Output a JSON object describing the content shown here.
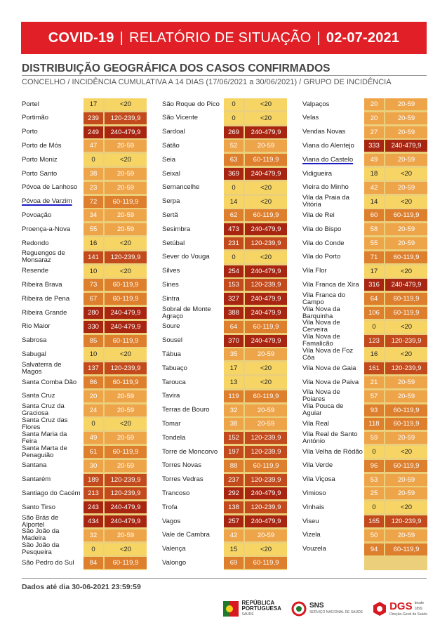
{
  "banner": {
    "left": "COVID-19",
    "middle": "RELATÓRIO DE SITUAÇÃO",
    "right": "02-07-2021",
    "separator": "|"
  },
  "heading": "DISTRIBUIÇÃO GEOGRÁFICA DOS CASOS CONFIRMADOS",
  "subheading": "CONCELHO / INCIDÊNCIA CUMULATIVA A 14 DIAS (17/06/2021 a 30/06/2021) / GRUPO DE INCIDÊNCIA",
  "footnote": "Dados até dia 30-06-2021 23:59:59",
  "group_colors": {
    "<20": {
      "bg": "#f6d565",
      "fg": "#222222"
    },
    "20-59": {
      "bg": "#eea54a",
      "fg": "#ffffff"
    },
    "60-119,9": {
      "bg": "#dd7f2c",
      "fg": "#ffffff"
    },
    "120-239,9": {
      "bg": "#c24a1c",
      "fg": "#ffffff"
    },
    "240-479,9": {
      "bg": "#a82611",
      "fg": "#ffffff"
    }
  },
  "columns": [
    [
      {
        "name": "Portel",
        "value": "17",
        "group": "<20"
      },
      {
        "name": "Portimão",
        "value": "239",
        "group": "120-239,9"
      },
      {
        "name": "Porto",
        "value": "249",
        "group": "240-479,9"
      },
      {
        "name": "Porto de Mós",
        "value": "47",
        "group": "20-59"
      },
      {
        "name": "Porto Moniz",
        "value": "0",
        "group": "<20"
      },
      {
        "name": "Porto Santo",
        "value": "38",
        "group": "20-59"
      },
      {
        "name": "Póvoa de Lanhoso",
        "value": "23",
        "group": "20-59"
      },
      {
        "name": "Póvoa de Varzim",
        "value": "72",
        "group": "60-119,9",
        "highlight": true
      },
      {
        "name": "Povoação",
        "value": "34",
        "group": "20-59"
      },
      {
        "name": "Proença-a-Nova",
        "value": "55",
        "group": "20-59"
      },
      {
        "name": "Redondo",
        "value": "16",
        "group": "<20"
      },
      {
        "name": "Reguengos de Monsaraz",
        "value": "141",
        "group": "120-239,9"
      },
      {
        "name": "Resende",
        "value": "10",
        "group": "<20"
      },
      {
        "name": "Ribeira Brava",
        "value": "73",
        "group": "60-119,9"
      },
      {
        "name": "Ribeira de Pena",
        "value": "67",
        "group": "60-119,9"
      },
      {
        "name": "Ribeira Grande",
        "value": "280",
        "group": "240-479,9"
      },
      {
        "name": "Rio Maior",
        "value": "330",
        "group": "240-479,9"
      },
      {
        "name": "Sabrosa",
        "value": "85",
        "group": "60-119,9"
      },
      {
        "name": "Sabugal",
        "value": "10",
        "group": "<20"
      },
      {
        "name": "Salvaterra de Magos",
        "value": "137",
        "group": "120-239,9"
      },
      {
        "name": "Santa Comba Dão",
        "value": "86",
        "group": "60-119,9"
      },
      {
        "name": "Santa Cruz",
        "value": "20",
        "group": "20-59"
      },
      {
        "name": "Santa Cruz da Graciosa",
        "value": "24",
        "group": "20-59"
      },
      {
        "name": "Santa Cruz das Flores",
        "value": "0",
        "group": "<20"
      },
      {
        "name": "Santa Maria da Feira",
        "value": "49",
        "group": "20-59"
      },
      {
        "name": "Santa Marta de Penaguião",
        "value": "61",
        "group": "60-119,9"
      },
      {
        "name": "Santana",
        "value": "30",
        "group": "20-59"
      },
      {
        "name": "Santarém",
        "value": "189",
        "group": "120-239,9"
      },
      {
        "name": "Santiago do Cacém",
        "value": "213",
        "group": "120-239,9"
      },
      {
        "name": "Santo Tirso",
        "value": "243",
        "group": "240-479,9"
      },
      {
        "name": "São Brás de Alportel",
        "value": "434",
        "group": "240-479,9"
      },
      {
        "name": "São João da Madeira",
        "value": "32",
        "group": "20-59"
      },
      {
        "name": "São João da Pesqueira",
        "value": "0",
        "group": "<20"
      },
      {
        "name": "São Pedro do Sul",
        "value": "84",
        "group": "60-119,9"
      }
    ],
    [
      {
        "name": "São Roque do Pico",
        "value": "0",
        "group": "<20"
      },
      {
        "name": "São Vicente",
        "value": "0",
        "group": "<20"
      },
      {
        "name": "Sardoal",
        "value": "269",
        "group": "240-479,9"
      },
      {
        "name": "Sátão",
        "value": "52",
        "group": "20-59"
      },
      {
        "name": "Seia",
        "value": "63",
        "group": "60-119,9"
      },
      {
        "name": "Seixal",
        "value": "369",
        "group": "240-479,9"
      },
      {
        "name": "Sernancelhe",
        "value": "0",
        "group": "<20"
      },
      {
        "name": "Serpa",
        "value": "14",
        "group": "<20"
      },
      {
        "name": "Sertã",
        "value": "62",
        "group": "60-119,9"
      },
      {
        "name": "Sesimbra",
        "value": "473",
        "group": "240-479,9"
      },
      {
        "name": "Setúbal",
        "value": "231",
        "group": "120-239,9"
      },
      {
        "name": "Sever do Vouga",
        "value": "0",
        "group": "<20"
      },
      {
        "name": "Silves",
        "value": "254",
        "group": "240-479,9"
      },
      {
        "name": "Sines",
        "value": "153",
        "group": "120-239,9"
      },
      {
        "name": "Sintra",
        "value": "327",
        "group": "240-479,9"
      },
      {
        "name": "Sobral de Monte Agraço",
        "value": "388",
        "group": "240-479,9"
      },
      {
        "name": "Soure",
        "value": "64",
        "group": "60-119,9"
      },
      {
        "name": "Sousel",
        "value": "370",
        "group": "240-479,9"
      },
      {
        "name": "Tábua",
        "value": "35",
        "group": "20-59"
      },
      {
        "name": "Tabuaço",
        "value": "17",
        "group": "<20"
      },
      {
        "name": "Tarouca",
        "value": "13",
        "group": "<20"
      },
      {
        "name": "Tavira",
        "value": "119",
        "group": "60-119,9"
      },
      {
        "name": "Terras de Bouro",
        "value": "32",
        "group": "20-59"
      },
      {
        "name": "Tomar",
        "value": "38",
        "group": "20-59"
      },
      {
        "name": "Tondela",
        "value": "152",
        "group": "120-239,9"
      },
      {
        "name": "Torre de Moncorvo",
        "value": "197",
        "group": "120-239,9"
      },
      {
        "name": "Torres Novas",
        "value": "88",
        "group": "60-119,9"
      },
      {
        "name": "Torres Vedras",
        "value": "237",
        "group": "120-239,9"
      },
      {
        "name": "Trancoso",
        "value": "292",
        "group": "240-479,9"
      },
      {
        "name": "Trofa",
        "value": "138",
        "group": "120-239,9"
      },
      {
        "name": "Vagos",
        "value": "257",
        "group": "240-479,9"
      },
      {
        "name": "Vale de Cambra",
        "value": "42",
        "group": "20-59"
      },
      {
        "name": "Valença",
        "value": "15",
        "group": "<20"
      },
      {
        "name": "Valongo",
        "value": "69",
        "group": "60-119,9"
      }
    ],
    [
      {
        "name": "Valpaços",
        "value": "20",
        "group": "20-59"
      },
      {
        "name": "Velas",
        "value": "20",
        "group": "20-59"
      },
      {
        "name": "Vendas Novas",
        "value": "27",
        "group": "20-59"
      },
      {
        "name": "Viana do Alentejo",
        "value": "333",
        "group": "240-479,9"
      },
      {
        "name": "Viana do Castelo",
        "value": "49",
        "group": "20-59",
        "highlight": true
      },
      {
        "name": "Vidigueira",
        "value": "18",
        "group": "<20"
      },
      {
        "name": "Vieira do Minho",
        "value": "42",
        "group": "20-59"
      },
      {
        "name": "Vila da Praia da Vitória",
        "value": "14",
        "group": "<20"
      },
      {
        "name": "Vila de Rei",
        "value": "60",
        "group": "60-119,9"
      },
      {
        "name": "Vila do Bispo",
        "value": "58",
        "group": "20-59"
      },
      {
        "name": "Vila do Conde",
        "value": "55",
        "group": "20-59"
      },
      {
        "name": "Vila do Porto",
        "value": "71",
        "group": "60-119,9"
      },
      {
        "name": "Vila Flor",
        "value": "17",
        "group": "<20"
      },
      {
        "name": "Vila Franca de Xira",
        "value": "316",
        "group": "240-479,9"
      },
      {
        "name": "Vila Franca do Campo",
        "value": "64",
        "group": "60-119,9"
      },
      {
        "name": "Vila Nova da Barquinha",
        "value": "106",
        "group": "60-119,9"
      },
      {
        "name": "Vila Nova de Cerveira",
        "value": "0",
        "group": "<20"
      },
      {
        "name": "Vila Nova de Famalicão",
        "value": "123",
        "group": "120-239,9"
      },
      {
        "name": "Vila Nova de Foz Côa",
        "value": "16",
        "group": "<20"
      },
      {
        "name": "Vila Nova de Gaia",
        "value": "161",
        "group": "120-239,9"
      },
      {
        "name": "Vila Nova de Paiva",
        "value": "21",
        "group": "20-59"
      },
      {
        "name": "Vila Nova de Poiares",
        "value": "57",
        "group": "20-59"
      },
      {
        "name": "Vila Pouca de Aguiar",
        "value": "93",
        "group": "60-119,9"
      },
      {
        "name": "Vila Real",
        "value": "118",
        "group": "60-119,9"
      },
      {
        "name": "Vila Real de Santo António",
        "value": "59",
        "group": "20-59"
      },
      {
        "name": "Vila Velha de Ródão",
        "value": "0",
        "group": "<20"
      },
      {
        "name": "Vila Verde",
        "value": "96",
        "group": "60-119,9"
      },
      {
        "name": "Vila Viçosa",
        "value": "53",
        "group": "20-59"
      },
      {
        "name": "Vimioso",
        "value": "25",
        "group": "20-59"
      },
      {
        "name": "Vinhais",
        "value": "0",
        "group": "<20"
      },
      {
        "name": "Viseu",
        "value": "165",
        "group": "120-239,9"
      },
      {
        "name": "Vizela",
        "value": "50",
        "group": "20-59"
      },
      {
        "name": "Vouzela",
        "value": "94",
        "group": "60-119,9"
      }
    ]
  ],
  "logos": {
    "republica_line1": "REPÚBLICA",
    "republica_line2": "PORTUGUESA",
    "republica_line3": "SAÚDE",
    "sns_main": "SNS",
    "sns_sub": "SERVIÇO NACIONAL DE SAÚDE",
    "dgs_main": "DGS",
    "dgs_sub": "Direção-Geral da Saúde",
    "dgs_since": "desde 1899"
  }
}
